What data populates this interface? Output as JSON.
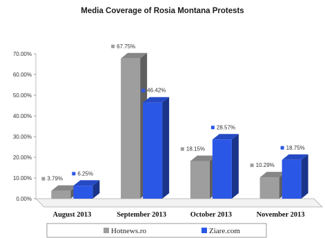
{
  "chart_data": {
    "type": "bar",
    "title": "Media Coverage of Rosia Montana Protests",
    "categories": [
      "August 2013",
      "September 2013",
      "October 2013",
      "November 2013"
    ],
    "series": [
      {
        "name": "Hotnews.ro",
        "values": [
          3.79,
          67.75,
          18.15,
          10.29
        ],
        "labels": [
          "3.79%",
          "67.75%",
          "18.15%",
          "10.29%"
        ],
        "color": "#9e9e9e"
      },
      {
        "name": "Ziare.com",
        "values": [
          6.25,
          46.42,
          28.57,
          18.75
        ],
        "labels": [
          "6.25%",
          "46.42%",
          "28.57%",
          "18.75%"
        ],
        "color": "#2b57e6"
      }
    ],
    "yticks": [
      "0.00%",
      "10.00%",
      "20.00%",
      "30.00%",
      "40.00%",
      "50.00%",
      "60.00%",
      "70.00%"
    ],
    "ylim": [
      0,
      70
    ],
    "grid": false,
    "legend_position": "bottom",
    "style": "3d"
  }
}
